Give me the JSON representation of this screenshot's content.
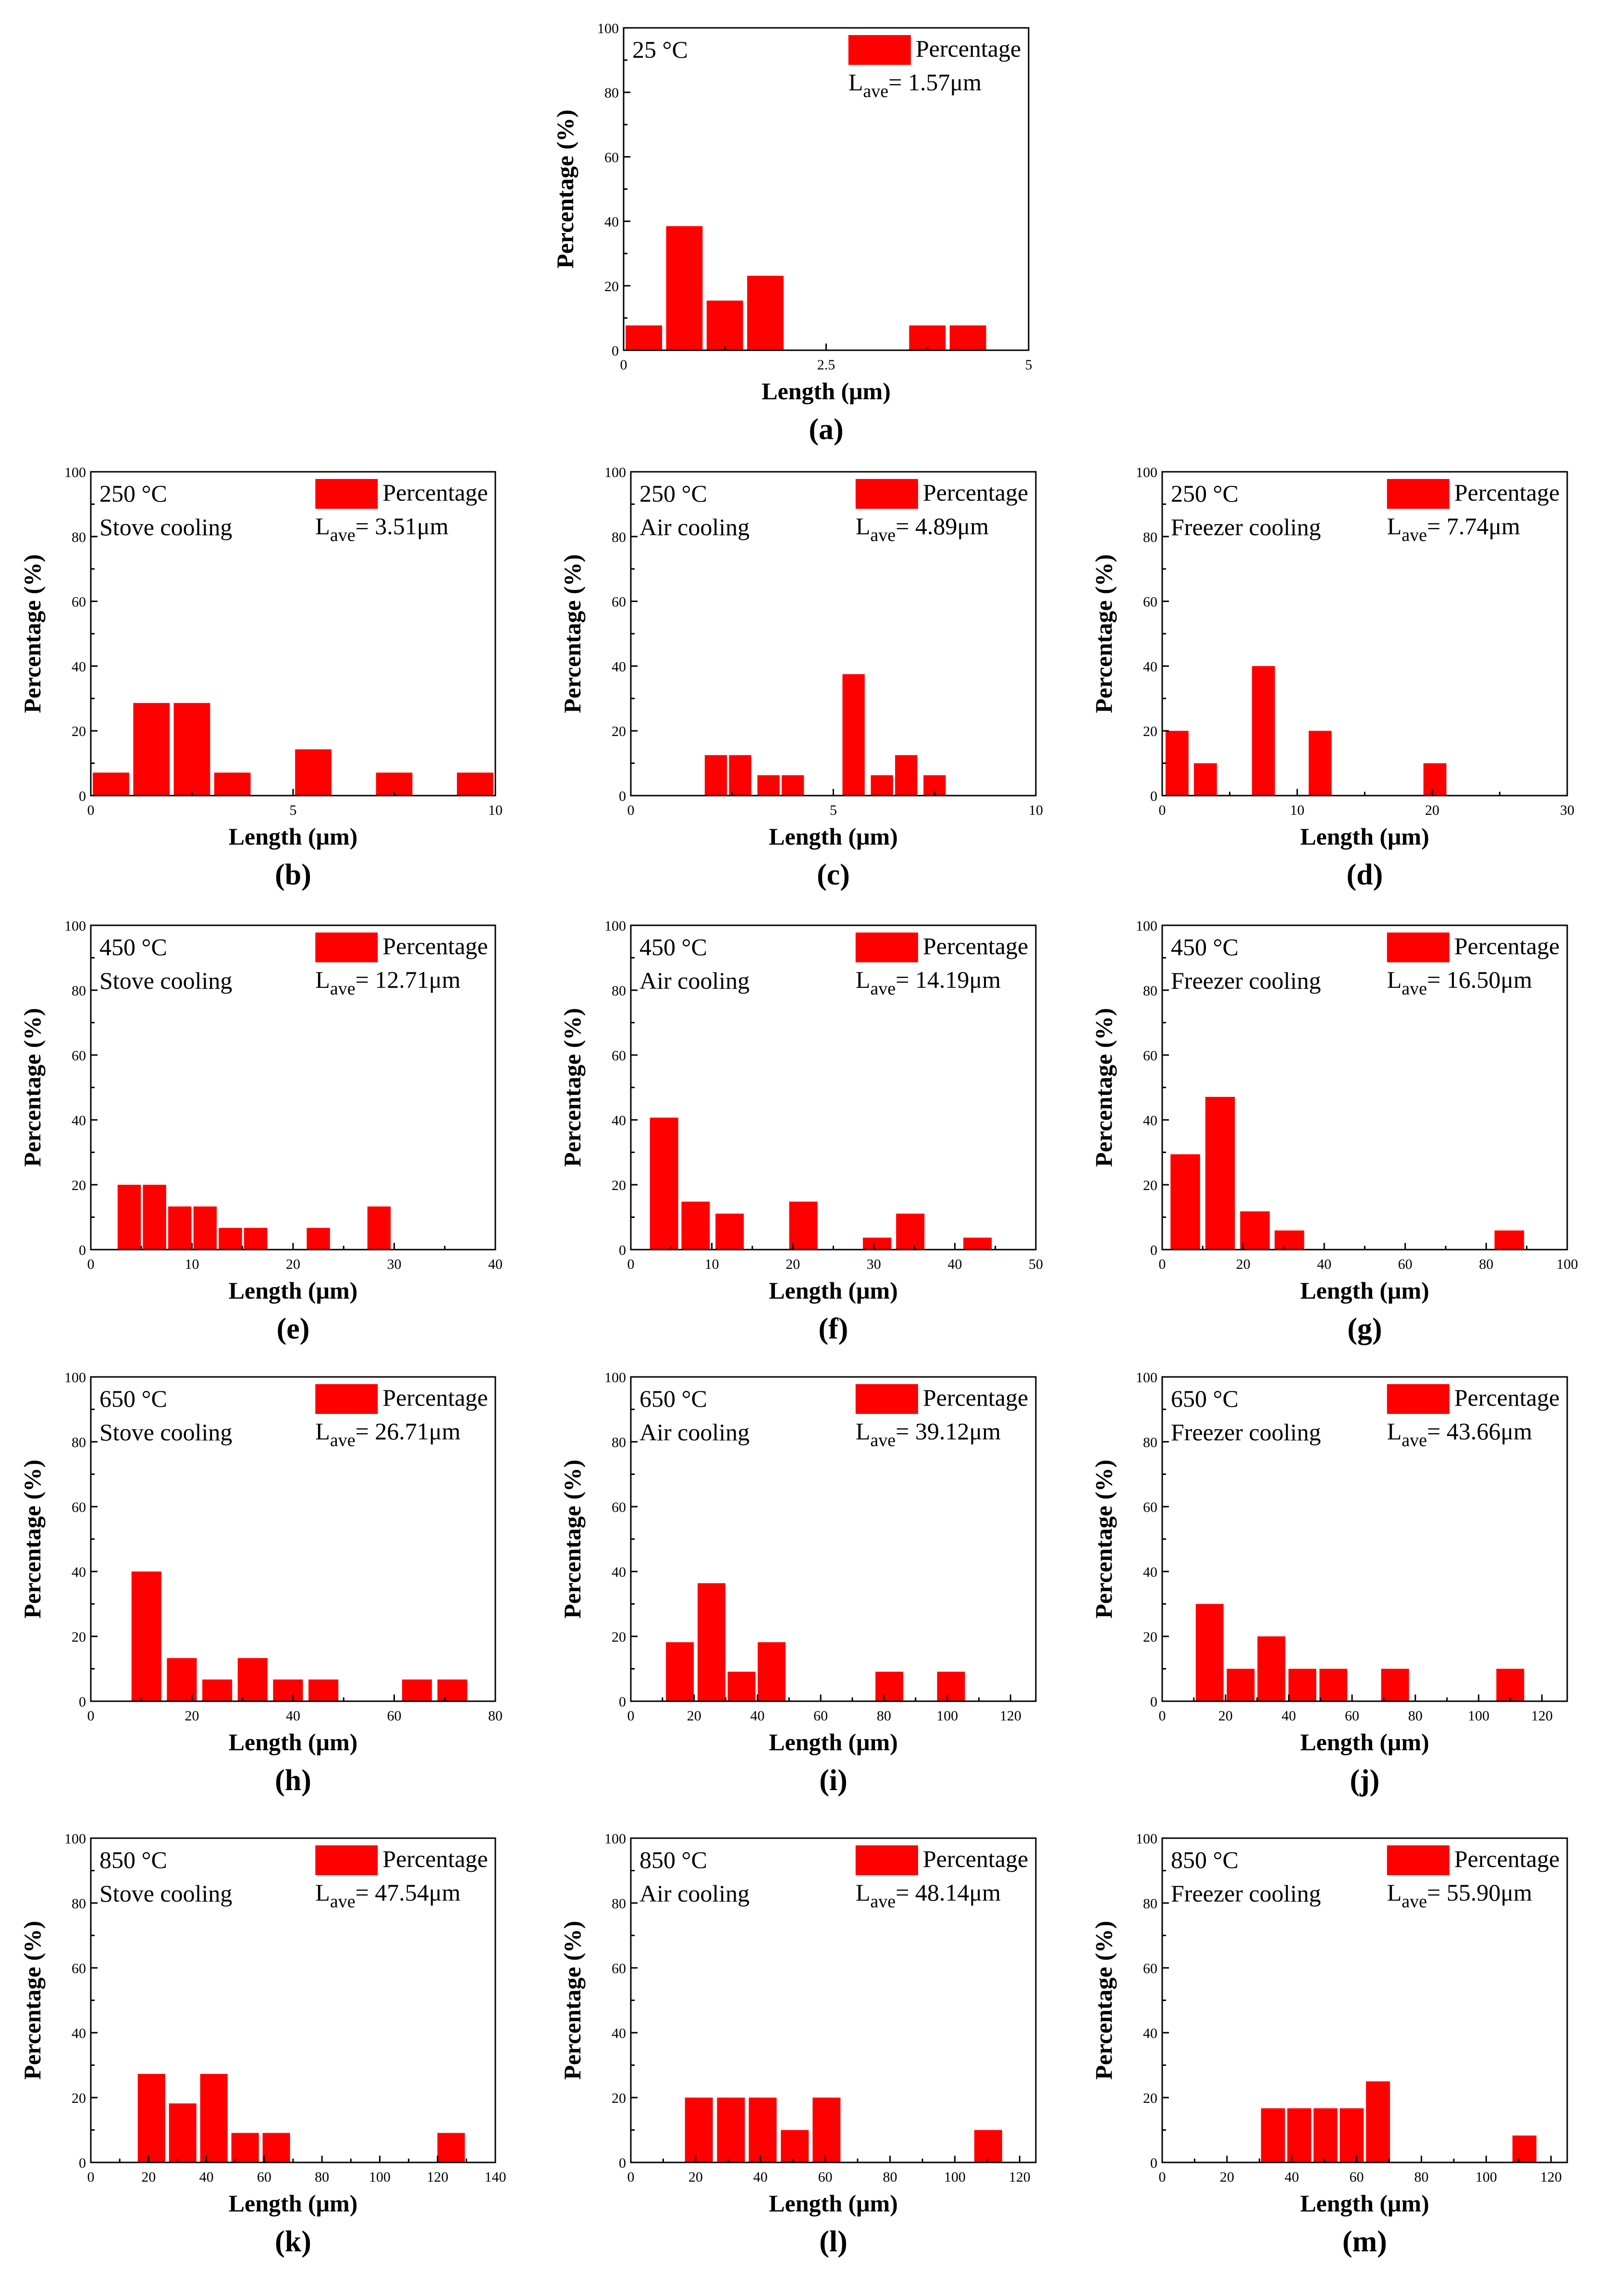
{
  "units": {
    "ylabel": "Percentage (%)",
    "xlabel": "Length (μm)"
  },
  "colors": {
    "bar": "#ff0000",
    "axis": "#000000",
    "background": "#ffffff"
  },
  "legend_label": "Percentage",
  "lave_prefix": "L",
  "lave_sub": "ave",
  "chart_data": [
    {
      "type": "bar",
      "panel": "(a)",
      "temp": "25 °C",
      "cooling": "",
      "lave": "= 1.57μm",
      "xlabel": "Length (μm)",
      "ylabel": "Percentage (%)",
      "xlim": [
        0,
        5
      ],
      "ylim": [
        0,
        100
      ],
      "xticks": [
        0,
        2.5,
        5
      ],
      "xtick_labels": [
        "0",
        "2.5",
        "5"
      ],
      "yticks": [
        0,
        20,
        40,
        60,
        80,
        100
      ],
      "bin_width": 0.45,
      "x": [
        0.25,
        0.75,
        1.25,
        1.75,
        3.75,
        4.25
      ],
      "values": [
        7.7,
        38.5,
        15.4,
        23.1,
        7.7,
        7.7
      ],
      "legend": "top-right",
      "grid": false
    },
    {
      "type": "bar",
      "panel": "(b)",
      "temp": "250 °C",
      "cooling": "Stove cooling",
      "lave": "= 3.51μm",
      "xlabel": "Length (μm)",
      "ylabel": "Percentage (%)",
      "xlim": [
        0,
        10
      ],
      "ylim": [
        0,
        100
      ],
      "xticks": [
        0,
        5,
        10
      ],
      "xtick_labels": [
        "0",
        "5",
        "10"
      ],
      "yticks": [
        0,
        20,
        40,
        60,
        80,
        100
      ],
      "bin_width": 0.9,
      "x": [
        0.5,
        1.5,
        2.5,
        3.5,
        5.5,
        7.5,
        9.5
      ],
      "values": [
        7.1,
        28.6,
        28.6,
        7.1,
        14.3,
        7.1,
        7.1
      ],
      "legend": "top-right",
      "grid": false
    },
    {
      "type": "bar",
      "panel": "(c)",
      "temp": "250 °C",
      "cooling": "Air cooling",
      "lave": "= 4.89μm",
      "xlabel": "Length (μm)",
      "ylabel": "Percentage (%)",
      "xlim": [
        0,
        10
      ],
      "ylim": [
        0,
        100
      ],
      "xticks": [
        0,
        5,
        10
      ],
      "xtick_labels": [
        "0",
        "5",
        "10"
      ],
      "yticks": [
        0,
        20,
        40,
        60,
        80,
        100
      ],
      "bin_width": 0.55,
      "x": [
        2.1,
        2.7,
        3.4,
        4.0,
        5.5,
        6.2,
        6.8,
        7.5
      ],
      "values": [
        12.5,
        12.5,
        6.3,
        6.3,
        37.5,
        6.3,
        12.5,
        6.3
      ],
      "legend": "top-right",
      "grid": false
    },
    {
      "type": "bar",
      "panel": "(d)",
      "temp": "250 °C",
      "cooling": "Freezer cooling",
      "lave": "= 7.74μm",
      "xlabel": "Length (μm)",
      "ylabel": "Percentage (%)",
      "xlim": [
        0,
        30
      ],
      "ylim": [
        0,
        100
      ],
      "xticks": [
        0,
        10,
        20,
        30
      ],
      "xtick_labels": [
        "0",
        "10",
        "20",
        "30"
      ],
      "yticks": [
        0,
        20,
        40,
        60,
        80,
        100
      ],
      "bin_width": 1.7,
      "x": [
        1.1,
        3.2,
        7.5,
        11.7,
        20.2
      ],
      "values": [
        20,
        10,
        40,
        20,
        10
      ],
      "legend": "top-right",
      "grid": false
    },
    {
      "type": "bar",
      "panel": "(e)",
      "temp": "450 °C",
      "cooling": "Stove cooling",
      "lave": "= 12.71μm",
      "xlabel": "Length (μm)",
      "ylabel": "Percentage (%)",
      "xlim": [
        0,
        40
      ],
      "ylim": [
        0,
        100
      ],
      "xticks": [
        0,
        10,
        20,
        30,
        40
      ],
      "xtick_labels": [
        "0",
        "10",
        "20",
        "30",
        "40"
      ],
      "yticks": [
        0,
        20,
        40,
        60,
        80,
        100
      ],
      "bin_width": 2.3,
      "x": [
        3.8,
        6.3,
        8.8,
        11.3,
        13.8,
        16.3,
        22.5,
        28.5
      ],
      "values": [
        20,
        20,
        13.3,
        13.3,
        6.7,
        6.7,
        6.7,
        13.3
      ],
      "legend": "top-right",
      "grid": false
    },
    {
      "type": "bar",
      "panel": "(f)",
      "temp": "450 °C",
      "cooling": "Air cooling",
      "lave": "= 14.19μm",
      "xlabel": "Length (μm)",
      "ylabel": "Percentage (%)",
      "xlim": [
        0,
        50
      ],
      "ylim": [
        0,
        100
      ],
      "xticks": [
        0,
        10,
        20,
        30,
        40,
        50
      ],
      "xtick_labels": [
        "0",
        "10",
        "20",
        "30",
        "40",
        "50"
      ],
      "yticks": [
        0,
        20,
        40,
        60,
        80,
        100
      ],
      "bin_width": 3.5,
      "x": [
        4.1,
        8.0,
        12.2,
        21.3,
        30.4,
        34.5,
        42.8
      ],
      "values": [
        40.7,
        14.8,
        11.1,
        14.8,
        3.7,
        11.1,
        3.7
      ],
      "legend": "top-right",
      "grid": false
    },
    {
      "type": "bar",
      "panel": "(g)",
      "temp": "450 °C",
      "cooling": "Freezer cooling",
      "lave": "= 16.50μm",
      "xlabel": "Length (μm)",
      "ylabel": "Percentage (%)",
      "xlim": [
        0,
        100
      ],
      "ylim": [
        0,
        100
      ],
      "xticks": [
        0,
        20,
        40,
        60,
        80,
        100
      ],
      "xtick_labels": [
        "0",
        "20",
        "40",
        "60",
        "80",
        "100"
      ],
      "yticks": [
        0,
        20,
        40,
        60,
        80,
        100
      ],
      "bin_width": 7.3,
      "x": [
        5.7,
        14.3,
        22.9,
        31.4,
        85.7
      ],
      "values": [
        29.4,
        47.1,
        11.8,
        5.9,
        5.9
      ],
      "legend": "top-right",
      "grid": false
    },
    {
      "type": "bar",
      "panel": "(h)",
      "temp": "650 °C",
      "cooling": "Stove cooling",
      "lave": "= 26.71μm",
      "xlabel": "Length (μm)",
      "ylabel": "Percentage (%)",
      "xlim": [
        0,
        80
      ],
      "ylim": [
        0,
        100
      ],
      "xticks": [
        0,
        20,
        40,
        60,
        80
      ],
      "xtick_labels": [
        "0",
        "20",
        "40",
        "60",
        "80"
      ],
      "yticks": [
        0,
        20,
        40,
        60,
        80,
        100
      ],
      "bin_width": 5.9,
      "x": [
        11,
        18,
        25,
        32,
        39,
        46,
        64.5,
        71.5
      ],
      "values": [
        40,
        13.3,
        6.7,
        13.3,
        6.7,
        6.7,
        6.7,
        6.7
      ],
      "legend": "top-right",
      "grid": false
    },
    {
      "type": "bar",
      "panel": "(i)",
      "temp": "650 °C",
      "cooling": "Air cooling",
      "lave": "= 39.12μm",
      "xlabel": "Length (μm)",
      "ylabel": "Percentage (%)",
      "xlim": [
        0,
        128
      ],
      "ylim": [
        0,
        100
      ],
      "xticks": [
        0,
        20,
        40,
        60,
        80,
        100,
        120
      ],
      "xtick_labels": [
        "0",
        "20",
        "40",
        "60",
        "80",
        "100",
        "120"
      ],
      "yticks": [
        0,
        20,
        40,
        60,
        80,
        100
      ],
      "bin_width": 8.8,
      "x": [
        15.5,
        25.5,
        35.0,
        44.5,
        81.7,
        101.2
      ],
      "values": [
        18.2,
        36.4,
        9.1,
        18.2,
        9.1,
        9.1
      ],
      "legend": "top-right",
      "grid": false
    },
    {
      "type": "bar",
      "panel": "(j)",
      "temp": "650 °C",
      "cooling": "Freezer cooling",
      "lave": "= 43.66μm",
      "xlabel": "Length (μm)",
      "ylabel": "Percentage (%)",
      "xlim": [
        0,
        128
      ],
      "ylim": [
        0,
        100
      ],
      "xticks": [
        0,
        20,
        40,
        60,
        80,
        100,
        120
      ],
      "xtick_labels": [
        "0",
        "20",
        "40",
        "60",
        "80",
        "100",
        "120"
      ],
      "yticks": [
        0,
        20,
        40,
        60,
        80,
        100
      ],
      "bin_width": 8.8,
      "x": [
        15.0,
        24.8,
        34.5,
        44.3,
        54.1,
        73.6,
        110.0
      ],
      "values": [
        30,
        10,
        20,
        10,
        10,
        10,
        10
      ],
      "legend": "top-right",
      "grid": false
    },
    {
      "type": "bar",
      "panel": "(k)",
      "temp": "850 °C",
      "cooling": "Stove cooling",
      "lave": "= 47.54μm",
      "xlabel": "Length (μm)",
      "ylabel": "Percentage (%)",
      "xlim": [
        0,
        140
      ],
      "ylim": [
        0,
        100
      ],
      "xticks": [
        0,
        20,
        40,
        60,
        80,
        100,
        120,
        140
      ],
      "xtick_labels": [
        "0",
        "20",
        "40",
        "60",
        "80",
        "100",
        "120",
        "140"
      ],
      "yticks": [
        0,
        20,
        40,
        60,
        80,
        100
      ],
      "bin_width": 9.5,
      "x": [
        21.0,
        31.8,
        42.6,
        53.4,
        64.2,
        124.7
      ],
      "values": [
        27.3,
        18.2,
        27.3,
        9.1,
        9.1,
        9.1
      ],
      "legend": "top-right",
      "grid": false
    },
    {
      "type": "bar",
      "panel": "(l)",
      "temp": "850 °C",
      "cooling": "Air cooling",
      "lave": "= 48.14μm",
      "xlabel": "Length (μm)",
      "ylabel": "Percentage (%)",
      "xlim": [
        0,
        125
      ],
      "ylim": [
        0,
        100
      ],
      "xticks": [
        0,
        20,
        40,
        60,
        80,
        100,
        120
      ],
      "xtick_labels": [
        "0",
        "20",
        "40",
        "60",
        "80",
        "100",
        "120"
      ],
      "yticks": [
        0,
        20,
        40,
        60,
        80,
        100
      ],
      "bin_width": 8.6,
      "x": [
        21.0,
        30.9,
        40.7,
        50.6,
        60.4,
        110.3
      ],
      "values": [
        20,
        20,
        20,
        10,
        20,
        10
      ],
      "legend": "top-right",
      "grid": false
    },
    {
      "type": "bar",
      "panel": "(m)",
      "temp": "850 °C",
      "cooling": "Freezer cooling",
      "lave": "= 55.90μm",
      "xlabel": "Length (μm)",
      "ylabel": "Percentage (%)",
      "xlim": [
        0,
        125
      ],
      "ylim": [
        0,
        100
      ],
      "xticks": [
        0,
        20,
        40,
        60,
        80,
        100,
        120
      ],
      "xtick_labels": [
        "0",
        "20",
        "40",
        "60",
        "80",
        "100",
        "120"
      ],
      "yticks": [
        0,
        20,
        40,
        60,
        80,
        100
      ],
      "bin_width": 7.4,
      "x": [
        34.2,
        42.3,
        50.4,
        58.5,
        66.6,
        111.8
      ],
      "values": [
        16.7,
        16.7,
        16.7,
        16.7,
        25,
        8.3
      ],
      "legend": "top-right",
      "grid": false
    }
  ]
}
